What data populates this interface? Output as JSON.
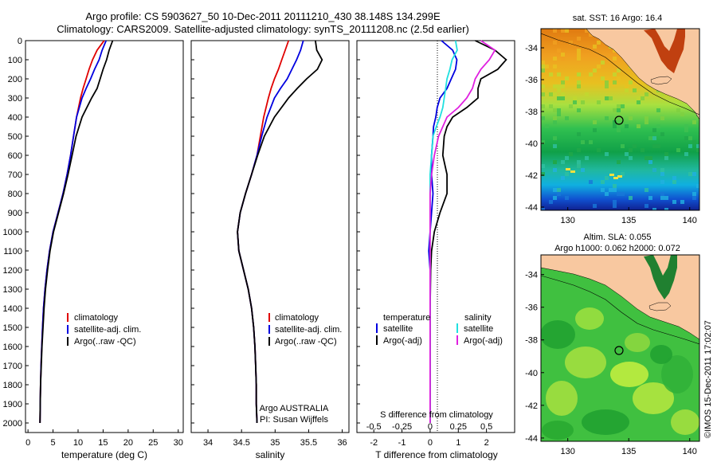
{
  "header": {
    "line1": "Argo profile: CS 5903627_50 10-Dec-2011 20111210_430 38.148S 134.299E",
    "line2": "Climatology: CARS2009. Satellite-adjusted climatology: synTS_20111208.nc (2.5d earlier)"
  },
  "colors": {
    "climatology": "#e00000",
    "satellite_adj": "#0000e0",
    "argo": "#000000",
    "salinity_satellite": "#20e0e0",
    "salinity_argo": "#e020e0",
    "land": "#f8c8a0"
  },
  "chart_data": [
    {
      "type": "line",
      "xlabel": "temperature (deg C)",
      "ylim": [
        0,
        2050
      ],
      "xlim": [
        -0.5,
        31
      ],
      "xticks": [
        "0",
        "5",
        "10",
        "15",
        "20",
        "25",
        "30"
      ],
      "yticks": [
        "0",
        "100",
        "200",
        "300",
        "400",
        "500",
        "600",
        "700",
        "800",
        "900",
        "1000",
        "1100",
        "1200",
        "1300",
        "1400",
        "1500",
        "1600",
        "1700",
        "1800",
        "1900",
        "2000"
      ],
      "legend": [
        "climatology",
        "satellite-adj. clim.",
        "Argo(..raw -QC)"
      ],
      "depth": [
        0,
        50,
        100,
        150,
        200,
        250,
        300,
        400,
        500,
        600,
        700,
        800,
        900,
        1000,
        1100,
        1200,
        1300,
        1400,
        1500,
        1600,
        1700,
        1800,
        1900,
        2000
      ],
      "series": [
        {
          "name": "climatology",
          "values": [
            15.2,
            13.8,
            12.9,
            12.2,
            11.6,
            11.0,
            10.5,
            9.7,
            9.1,
            8.5,
            7.8,
            7.0,
            6.0,
            5.0,
            4.3,
            3.8,
            3.4,
            3.1,
            2.9,
            2.75,
            2.6,
            2.5,
            2.45,
            2.4
          ]
        },
        {
          "name": "satellite-adj. clim.",
          "values": [
            15.6,
            14.8,
            14.2,
            13.3,
            12.5,
            11.6,
            10.8,
            9.7,
            9.1,
            8.5,
            7.8,
            7.0,
            6.0,
            5.0,
            4.3,
            3.8,
            3.4,
            3.1,
            2.9,
            2.75,
            2.6,
            2.5,
            2.45,
            2.4
          ]
        },
        {
          "name": "Argo(..raw -QC)",
          "values": [
            16.9,
            16.2,
            15.7,
            15.0,
            14.4,
            13.8,
            12.7,
            10.8,
            9.6,
            8.8,
            8.0,
            7.1,
            6.1,
            5.1,
            4.4,
            3.9,
            3.5,
            3.2,
            3.0,
            2.8,
            2.65,
            2.5,
            2.45,
            2.4
          ]
        }
      ]
    },
    {
      "type": "line",
      "xlabel": "salinity",
      "ylim": [
        0,
        2050
      ],
      "xlim": [
        33.75,
        36.1
      ],
      "xticks": [
        "34",
        "34.5",
        "35",
        "35.5",
        "36"
      ],
      "legend": [
        "climatology",
        "satellite-adj. clim.",
        "Argo(..raw -QC)"
      ],
      "annotation": [
        "Argo AUSTRALIA",
        "PI: Susan Wijffels"
      ],
      "depth": [
        0,
        50,
        100,
        150,
        200,
        250,
        300,
        400,
        500,
        600,
        700,
        800,
        900,
        1000,
        1100,
        1200,
        1300,
        1400,
        1500,
        1600,
        1700,
        1800,
        1900,
        2000
      ],
      "series": [
        {
          "name": "climatology",
          "values": [
            35.2,
            35.15,
            35.1,
            35.05,
            34.99,
            34.94,
            34.9,
            34.83,
            34.78,
            34.73,
            34.65,
            34.56,
            34.48,
            34.44,
            34.46,
            34.53,
            34.6,
            34.65,
            34.68,
            34.7,
            34.71,
            34.72,
            34.72,
            34.73
          ]
        },
        {
          "name": "satellite-adj. clim.",
          "values": [
            35.42,
            35.38,
            35.32,
            35.25,
            35.18,
            35.08,
            34.99,
            34.88,
            34.8,
            34.73,
            34.65,
            34.56,
            34.48,
            34.44,
            34.46,
            34.53,
            34.6,
            34.65,
            34.68,
            34.7,
            34.71,
            34.72,
            34.72,
            34.73
          ]
        },
        {
          "name": "Argo(..raw -QC)",
          "values": [
            35.6,
            35.62,
            35.7,
            35.63,
            35.47,
            35.33,
            35.2,
            34.99,
            34.84,
            34.74,
            34.65,
            34.56,
            34.48,
            34.44,
            34.46,
            34.53,
            34.6,
            34.65,
            34.68,
            34.7,
            34.71,
            34.72,
            34.72,
            34.73
          ]
        }
      ]
    },
    {
      "type": "line",
      "xlabel": "T difference from climatology",
      "xlabel_top": "S difference from climatology",
      "ylim": [
        0,
        2050
      ],
      "xlim": [
        -2.6,
        3.0
      ],
      "xticks": [
        "-2",
        "-1",
        "0",
        "1",
        "2"
      ],
      "top_ticks": [
        "-0.5",
        "-0.25",
        "0",
        "0.25",
        "0.5"
      ],
      "legend_temperature_title": "temperature",
      "legend_salinity_title": "salinity",
      "legend": [
        "satellite",
        "Argo(-adj)",
        "satellite",
        "Argo(-adj)"
      ],
      "depth": [
        0,
        50,
        100,
        150,
        200,
        250,
        300,
        350,
        400,
        450,
        500,
        600,
        700,
        800,
        900,
        1000,
        1100,
        1200,
        1400,
        1600,
        1800,
        2000
      ],
      "series": [
        {
          "name": "temperature satellite",
          "values": [
            0.4,
            0.8,
            0.95,
            0.9,
            0.75,
            0.6,
            0.35,
            0.25,
            0.2,
            0.12,
            0.1,
            0.05,
            0.05,
            0.1,
            0.05,
            0.0,
            -0.05,
            0.0,
            0.0,
            0.0,
            0.0,
            0.0
          ]
        },
        {
          "name": "temperature Argo(-adj)",
          "values": [
            1.6,
            2.3,
            2.7,
            2.4,
            1.8,
            1.7,
            1.7,
            1.3,
            0.8,
            0.6,
            0.5,
            0.45,
            0.6,
            0.6,
            0.35,
            0.15,
            0.05,
            0.02,
            0.0,
            0.0,
            0.0,
            0.0
          ]
        },
        {
          "name": "salinity satellite",
          "values": [
            0.9,
            0.96,
            0.78,
            0.7,
            0.6,
            0.55,
            0.5,
            0.45,
            0.35,
            0.22,
            0.1,
            0.05,
            0.0,
            0.0,
            0.0,
            0.0,
            0.0,
            0.0,
            0.0,
            0.0,
            0.0,
            0.0
          ]
        },
        {
          "name": "salinity Argo(-adj)",
          "values": [
            1.8,
            2.3,
            2.1,
            1.8,
            1.6,
            1.5,
            1.3,
            1.0,
            0.6,
            0.45,
            0.3,
            0.15,
            0.05,
            0.0,
            0.0,
            0.0,
            0.0,
            0.0,
            0.0,
            0.0,
            0.0,
            0.0
          ]
        }
      ]
    },
    {
      "type": "heatmap",
      "title": "sat. SST: 16 Argo: 16.4",
      "xticks": [
        "130",
        "135",
        "140"
      ],
      "yticks": [
        "-34",
        "-36",
        "-38",
        "-40",
        "-42",
        "-44"
      ],
      "xlim": [
        127.8,
        140.8
      ],
      "ylim": [
        -44.2,
        -32.8
      ],
      "argo_position": {
        "lon": 134.299,
        "lat": -38.148
      }
    },
    {
      "type": "heatmap",
      "title": "Altim. SLA: 0.055",
      "subtitle": "Argo h1000: 0.062 h2000: 0.072",
      "xticks": [
        "130",
        "135",
        "140"
      ],
      "yticks": [
        "-34",
        "-36",
        "-38",
        "-40",
        "-42",
        "-44"
      ],
      "xlim": [
        127.8,
        140.8
      ],
      "ylim": [
        -44.2,
        -32.8
      ],
      "argo_position": {
        "lon": 134.299,
        "lat": -38.148
      }
    }
  ],
  "footer": {
    "credit": "©IMOS 15-Dec-2011 17:02:07"
  }
}
